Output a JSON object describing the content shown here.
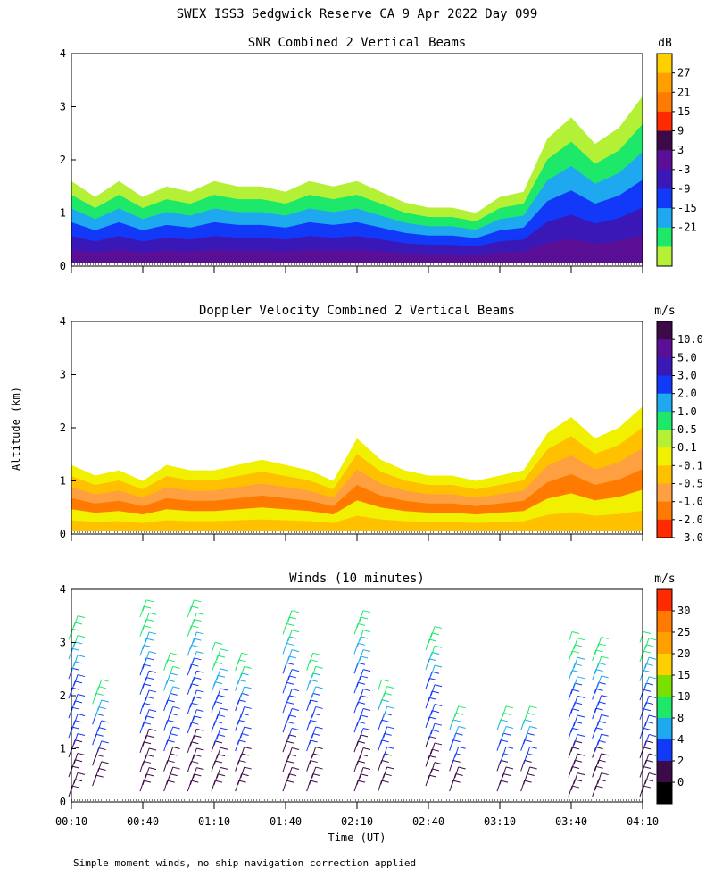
{
  "title": "SWEX ISS3 Sedgwick Reserve CA   9 Apr 2022 Day 099",
  "footnote": "Simple moment winds, no ship navigation correction applied",
  "shared_axes": {
    "ylabel": "Altitude (km)",
    "xlabel": "Time (UT)",
    "y_ticks": [
      "0",
      "1",
      "2",
      "3",
      "4"
    ],
    "x_ticks": [
      "00:10",
      "00:40",
      "01:10",
      "01:40",
      "02:10",
      "02:40",
      "03:10",
      "03:40",
      "04:10"
    ]
  },
  "chart_data": [
    {
      "type": "heatmap",
      "title": "SNR Combined 2 Vertical Beams",
      "unit": "dB",
      "ylim": [
        0,
        4
      ],
      "xlim": [
        "00:10",
        "04:10"
      ],
      "colorbar": {
        "labels": [
          "27",
          "21",
          "15",
          "9",
          "3",
          "-3",
          "-9",
          "-15",
          "-21"
        ],
        "colors": [
          "#ffd000",
          "#ffa000",
          "#ff7a00",
          "#ff2a00",
          "#3d0a48",
          "#5a0f96",
          "#3a18b8",
          "#1238f8",
          "#1ea8f0",
          "#1ee86a",
          "#b4f036"
        ]
      },
      "profile": {
        "x": [
          "00:10",
          "00:20",
          "00:30",
          "00:40",
          "00:50",
          "01:00",
          "01:10",
          "01:20",
          "01:30",
          "01:40",
          "01:50",
          "02:00",
          "02:10",
          "02:20",
          "02:30",
          "02:40",
          "02:50",
          "03:00",
          "03:10",
          "03:20",
          "03:30",
          "03:40",
          "03:50",
          "04:00",
          "04:10"
        ],
        "echo_top_km": [
          1.6,
          1.3,
          1.6,
          1.3,
          1.5,
          1.4,
          1.6,
          1.5,
          1.5,
          1.4,
          1.6,
          1.5,
          1.6,
          1.4,
          1.2,
          1.1,
          1.1,
          1.0,
          1.3,
          1.4,
          2.4,
          2.8,
          2.3,
          2.6,
          3.2
        ]
      }
    },
    {
      "type": "heatmap",
      "title": "Doppler Velocity Combined 2 Vertical Beams",
      "unit": "m/s",
      "ylim": [
        0,
        4
      ],
      "xlim": [
        "00:10",
        "04:10"
      ],
      "colorbar": {
        "labels": [
          "10.0",
          "5.0",
          "3.0",
          "2.0",
          "1.0",
          "0.5",
          "0.1",
          "-0.1",
          "-0.5",
          "-1.0",
          "-2.0",
          "-3.0"
        ],
        "colors": [
          "#3d0a48",
          "#5a0f96",
          "#3a18b8",
          "#1238f8",
          "#1ea8f0",
          "#1ee86a",
          "#b4f036",
          "#f0f000",
          "#ffc000",
          "#ffa040",
          "#ff7a00",
          "#ff2a00"
        ]
      },
      "profile": {
        "x": [
          "00:10",
          "00:20",
          "00:30",
          "00:40",
          "00:50",
          "01:00",
          "01:10",
          "01:20",
          "01:30",
          "01:40",
          "01:50",
          "02:00",
          "02:10",
          "02:20",
          "02:30",
          "02:40",
          "02:50",
          "03:00",
          "03:10",
          "03:20",
          "03:30",
          "03:40",
          "03:50",
          "04:00",
          "04:10"
        ],
        "echo_top_km": [
          1.3,
          1.1,
          1.2,
          1.0,
          1.3,
          1.2,
          1.2,
          1.3,
          1.4,
          1.3,
          1.2,
          1.0,
          1.8,
          1.4,
          1.2,
          1.1,
          1.1,
          1.0,
          1.1,
          1.2,
          1.9,
          2.2,
          1.8,
          2.0,
          2.4
        ]
      }
    },
    {
      "type": "scatter",
      "title": "Winds (10 minutes)",
      "unit": "m/s",
      "ylim": [
        0,
        4
      ],
      "xlim": [
        "00:10",
        "04:10"
      ],
      "colorbar": {
        "labels": [
          "30",
          "25",
          "20",
          "15",
          "10",
          "8",
          "4",
          "2",
          "0"
        ],
        "colors": [
          "#ff2a00",
          "#ff7a00",
          "#ffa000",
          "#ffd000",
          "#7ae000",
          "#1ee86a",
          "#1ea8f0",
          "#1238f8",
          "#3d0a48",
          "#000000"
        ]
      },
      "wind_profiles": [
        {
          "time": "00:10",
          "bottom_km": 0.1,
          "top_km": 3.3
        },
        {
          "time": "00:20",
          "bottom_km": 0.3,
          "top_km": 2.1
        },
        {
          "time": "00:40",
          "bottom_km": 0.2,
          "top_km": 3.6
        },
        {
          "time": "00:50",
          "bottom_km": 0.2,
          "top_km": 2.6
        },
        {
          "time": "01:00",
          "bottom_km": 0.2,
          "top_km": 3.6
        },
        {
          "time": "01:10",
          "bottom_km": 0.2,
          "top_km": 2.8
        },
        {
          "time": "01:20",
          "bottom_km": 0.2,
          "top_km": 2.6
        },
        {
          "time": "01:40",
          "bottom_km": 0.2,
          "top_km": 3.4
        },
        {
          "time": "01:50",
          "bottom_km": 0.2,
          "top_km": 2.6
        },
        {
          "time": "02:10",
          "bottom_km": 0.2,
          "top_km": 3.4
        },
        {
          "time": "02:20",
          "bottom_km": 0.2,
          "top_km": 2.1
        },
        {
          "time": "02:40",
          "bottom_km": 0.3,
          "top_km": 3.1
        },
        {
          "time": "02:50",
          "bottom_km": 0.2,
          "top_km": 1.6
        },
        {
          "time": "03:10",
          "bottom_km": 0.2,
          "top_km": 1.6
        },
        {
          "time": "03:20",
          "bottom_km": 0.2,
          "top_km": 1.6
        },
        {
          "time": "03:40",
          "bottom_km": 0.1,
          "top_km": 3.0
        },
        {
          "time": "03:50",
          "bottom_km": 0.1,
          "top_km": 2.9
        },
        {
          "time": "04:10",
          "bottom_km": 0.1,
          "top_km": 3.0
        }
      ]
    }
  ]
}
